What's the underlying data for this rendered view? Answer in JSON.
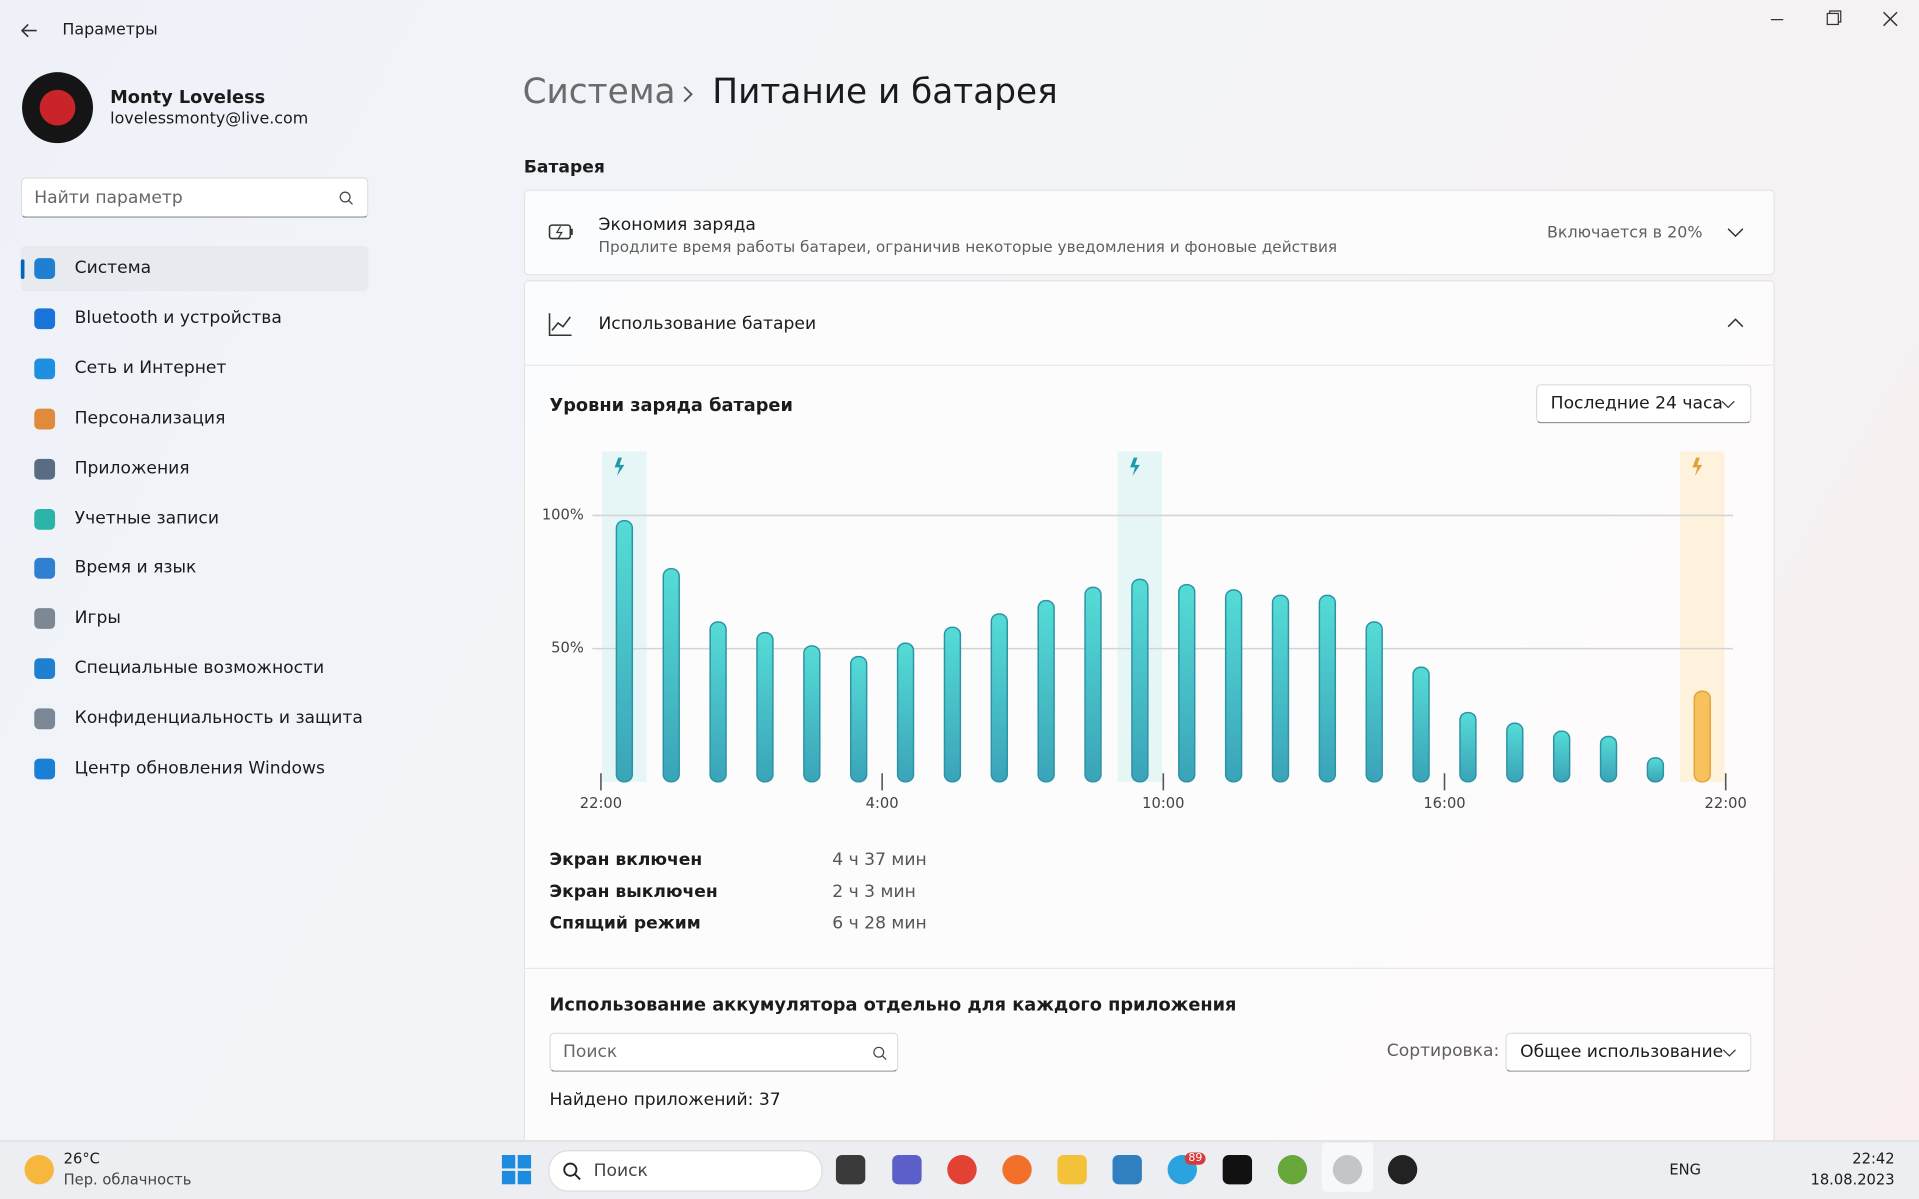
{
  "window": {
    "title": "Параметры"
  },
  "user": {
    "name": "Monty Loveless",
    "email": "lovelessmonty@live.com"
  },
  "search_placeholder": "Найти параметр",
  "nav": [
    "Система",
    "Bluetooth и устройства",
    "Сеть и Интернет",
    "Персонализация",
    "Приложения",
    "Учетные записи",
    "Время и язык",
    "Игры",
    "Специальные возможности",
    "Конфиденциальность и защита",
    "Центр обновления Windows"
  ],
  "breadcrumb": {
    "parent": "Система",
    "current": "Питание и батарея"
  },
  "section": "Батарея",
  "saver": {
    "title": "Экономия заряда",
    "description": "Продлите время работы батареи, ограничив некоторые уведомления и фоновые действия",
    "status": "Включается в 20%"
  },
  "usage": {
    "title": "Использование батареи",
    "period": "Последние 24 часа"
  },
  "chart_data": {
    "type": "bar",
    "title": "Уровни заряда батареи",
    "categories": [
      null,
      null,
      null,
      null,
      null,
      null,
      null,
      null,
      null,
      null,
      null,
      null,
      null,
      null,
      null,
      null,
      null,
      null,
      null,
      null,
      null,
      null,
      null,
      null
    ],
    "values": [
      98,
      80,
      60,
      56,
      51,
      47,
      52,
      58,
      63,
      68,
      73,
      76,
      74,
      72,
      70,
      70,
      60,
      43,
      26,
      22,
      19,
      17,
      9,
      34
    ],
    "colors": [
      "#3fc3c8",
      "#3fc3c8",
      "#3fc3c8",
      "#3fc3c8",
      "#3fc3c8",
      "#3fc3c8",
      "#3fc3c8",
      "#3fc3c8",
      "#3fc3c8",
      "#3fc3c8",
      "#3fc3c8",
      "#3fc3c8",
      "#3fc3c8",
      "#3fc3c8",
      "#3fc3c8",
      "#3fc3c8",
      "#3fc3c8",
      "#3fc3c8",
      "#3fc3c8",
      "#3fc3c8",
      "#3fc3c8",
      "#3fc3c8",
      "#3fc3c8",
      "#f7c15e"
    ],
    "xlim": [
      0,
      24
    ],
    "xticks": [
      {
        "value": 0,
        "label": "22:00"
      },
      {
        "value": 6,
        "label": "4:00"
      },
      {
        "value": 12,
        "label": "10:00"
      },
      {
        "value": 18,
        "label": "16:00"
      },
      {
        "value": 24,
        "label": "22:00"
      }
    ],
    "ylim": [
      0,
      124
    ],
    "yticks": [
      {
        "value": 50,
        "label": "50%"
      },
      {
        "value": 100,
        "label": "100%"
      }
    ],
    "grid": true
  },
  "stats": [
    [
      "Экран включен",
      "4 ч 37 мин"
    ],
    [
      "Экран выключен",
      "2 ч 3 мин"
    ],
    [
      "Спящий режим",
      "6 ч 28 мин"
    ]
  ],
  "apps": {
    "title": "Использование аккумулятора отдельно для каждого приложения",
    "search_placeholder": "Поиск",
    "sort_label": "Сортировка:",
    "sort_value": "Общее использование",
    "found": "Найдено приложений: 37"
  },
  "taskbar": {
    "temperature": "26°C",
    "weather": "Пер. облачность",
    "search": "Поиск",
    "badge": "89",
    "language": "ENG",
    "time": "22:42",
    "date": "18.08.2023"
  }
}
